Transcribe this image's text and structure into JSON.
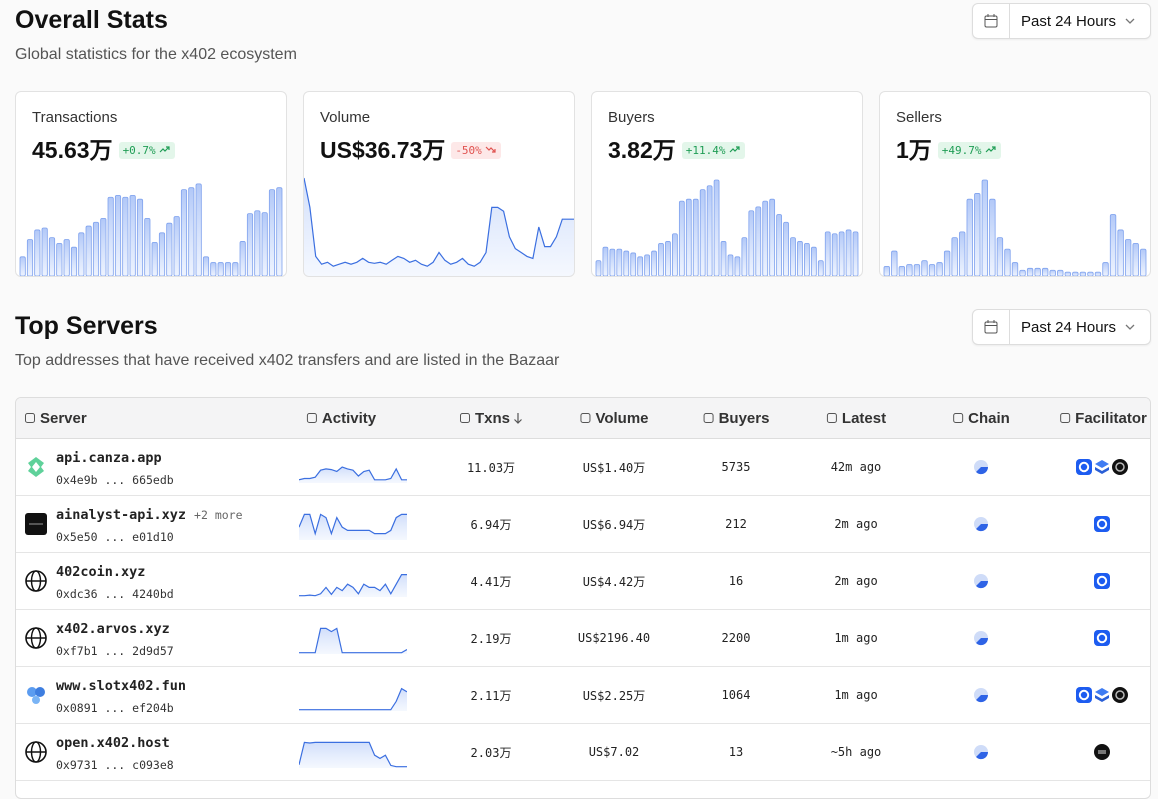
{
  "header": {
    "title": "Overall Stats",
    "subtitle": "Global statistics for the x402 ecosystem",
    "range": "Past 24 Hours"
  },
  "stats": [
    {
      "label": "Transactions",
      "value": "45.63万",
      "change": "+0.7%",
      "trend": [
        20,
        38,
        48,
        50,
        40,
        34,
        38,
        30,
        45,
        52,
        56,
        60,
        82,
        84,
        82,
        84,
        80,
        60,
        35,
        45,
        55,
        62,
        90,
        92,
        96,
        20,
        14,
        14,
        14,
        14,
        36,
        65,
        68,
        66,
        90,
        92
      ]
    },
    {
      "label": "Volume",
      "value": "US$36.73万",
      "change": "-50%",
      "trend": [
        100,
        70,
        20,
        12,
        14,
        10,
        12,
        14,
        12,
        14,
        18,
        14,
        13,
        14,
        12,
        16,
        20,
        18,
        14,
        16,
        12,
        10,
        14,
        24,
        16,
        12,
        14,
        18,
        12,
        10,
        14,
        24,
        70,
        70,
        66,
        40,
        28,
        24,
        20,
        18,
        50,
        30,
        30,
        40,
        58,
        58,
        58
      ]
    },
    {
      "label": "Buyers",
      "value": "3.82万",
      "change": "+11.4%",
      "trend": [
        16,
        30,
        28,
        28,
        26,
        24,
        20,
        22,
        26,
        34,
        36,
        44,
        78,
        80,
        80,
        90,
        94,
        100,
        36,
        22,
        20,
        40,
        68,
        72,
        78,
        80,
        64,
        56,
        40,
        36,
        34,
        30,
        16,
        46,
        44,
        46,
        48,
        46
      ]
    },
    {
      "label": "Sellers",
      "value": "1万",
      "change": "+49.7%",
      "trend": [
        10,
        26,
        10,
        12,
        12,
        16,
        12,
        14,
        26,
        40,
        46,
        80,
        86,
        100,
        80,
        40,
        28,
        14,
        6,
        8,
        8,
        8,
        6,
        6,
        4,
        4,
        4,
        4,
        4,
        14,
        64,
        48,
        38,
        34,
        28
      ]
    }
  ],
  "servers": {
    "title": "Top Servers",
    "subtitle": "Top addresses that have received x402 transfers and are listed in the Bazaar",
    "range": "Past 24 Hours",
    "columns": [
      "Server",
      "Activity",
      "Txns",
      "Volume",
      "Buyers",
      "Latest",
      "Chain",
      "Facilitator"
    ],
    "rows": [
      {
        "name": "api.canza.app",
        "address": "0x4e9b ... 665edb",
        "activity": [
          10,
          14,
          14,
          18,
          40,
          44,
          42,
          36,
          50,
          44,
          40,
          22,
          36,
          40,
          10,
          10,
          10,
          14,
          44,
          10,
          10
        ],
        "txns": "11.03万",
        "volume": "US$1.40万",
        "buyers": 5735,
        "latest": "42m ago"
      },
      {
        "name": "ainalyst-api.xyz",
        "more": "+2 more",
        "address": "0x5e50 ... e01d10",
        "activity": [
          40,
          80,
          80,
          20,
          80,
          70,
          20,
          70,
          40,
          30,
          30,
          30,
          30,
          30,
          20,
          20,
          20,
          30,
          70,
          80,
          80
        ],
        "txns": "6.94万",
        "volume": "US$6.94万",
        "buyers": 212,
        "latest": "2m ago"
      },
      {
        "name": "402coin.xyz",
        "address": "0xdc36 ... 4240bd",
        "activity": [
          4,
          4,
          6,
          4,
          10,
          30,
          8,
          30,
          20,
          40,
          30,
          10,
          40,
          30,
          30,
          20,
          40,
          10,
          40,
          70,
          70
        ],
        "txns": "4.41万",
        "volume": "US$4.42万",
        "buyers": 16,
        "latest": "2m ago"
      },
      {
        "name": "x402.arvos.xyz",
        "address": "0xf7b1 ... 2d9d57",
        "activity": [
          4,
          4,
          4,
          4,
          80,
          80,
          70,
          80,
          4,
          4,
          4,
          4,
          4,
          4,
          4,
          4,
          4,
          4,
          4,
          4,
          14
        ],
        "txns": "2.19万",
        "volume": "US$2196.40",
        "buyers": 2200,
        "latest": "1m ago"
      },
      {
        "name": "www.slotx402.fun",
        "address": "0x0891 ... ef204b",
        "activity": [
          4,
          4,
          4,
          4,
          4,
          4,
          4,
          4,
          4,
          4,
          4,
          4,
          4,
          4,
          4,
          4,
          4,
          4,
          30,
          70,
          60
        ],
        "txns": "2.11万",
        "volume": "US$2.25万",
        "buyers": 1064,
        "latest": "1m ago"
      },
      {
        "name": "open.x402.host",
        "address": "0x9731 ... c093e8",
        "activity": [
          10,
          80,
          78,
          80,
          80,
          80,
          80,
          80,
          80,
          80,
          80,
          80,
          80,
          80,
          40,
          30,
          40,
          8,
          4,
          4,
          4
        ],
        "txns": "2.03万",
        "volume": "US$7.02",
        "buyers": 13,
        "latest": "~5h ago"
      }
    ]
  }
}
